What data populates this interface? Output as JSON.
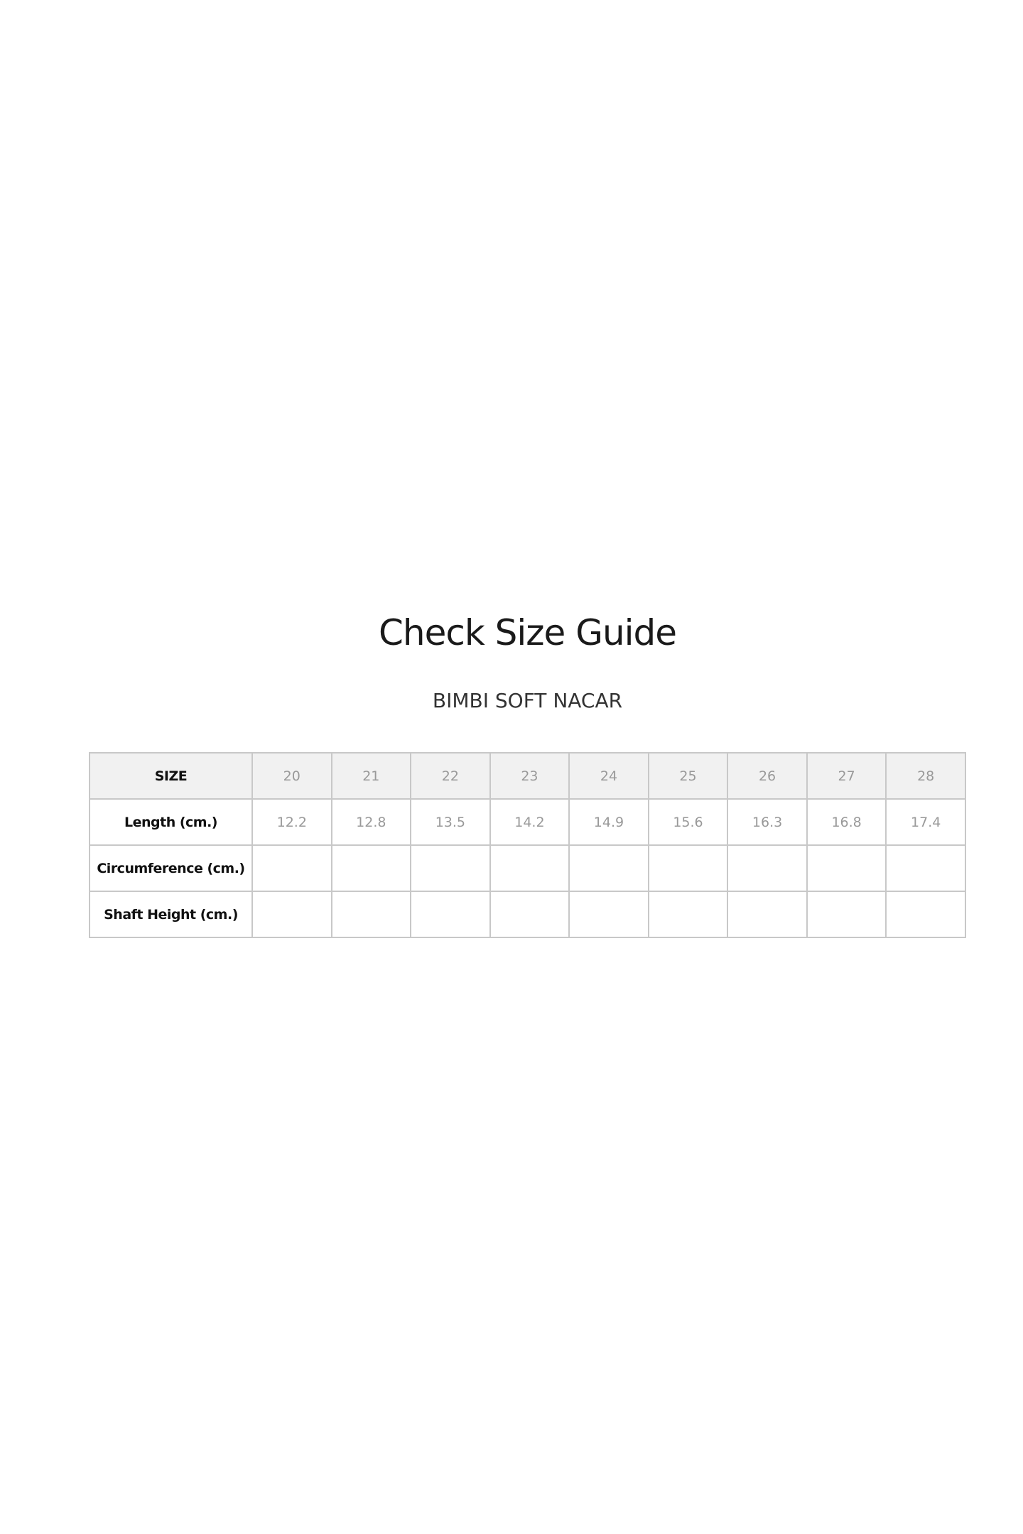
{
  "title": "Check Size Guide",
  "subtitle": "BIMBI SOFT NACAR",
  "table": {
    "rows": [
      {
        "label": "SIZE",
        "values": [
          "20",
          "21",
          "22",
          "23",
          "24",
          "25",
          "26",
          "27",
          "28"
        ]
      },
      {
        "label": "Length (cm.)",
        "values": [
          "12.2",
          "12.8",
          "13.5",
          "14.2",
          "14.9",
          "15.6",
          "16.3",
          "16.8",
          "17.4"
        ]
      },
      {
        "label": "Circumference (cm.)",
        "values": [
          "",
          "",
          "",
          "",
          "",
          "",
          "",
          "",
          ""
        ]
      },
      {
        "label": "Shaft Height (cm.)",
        "values": [
          "",
          "",
          "",
          "",
          "",
          "",
          "",
          "",
          ""
        ]
      }
    ]
  }
}
